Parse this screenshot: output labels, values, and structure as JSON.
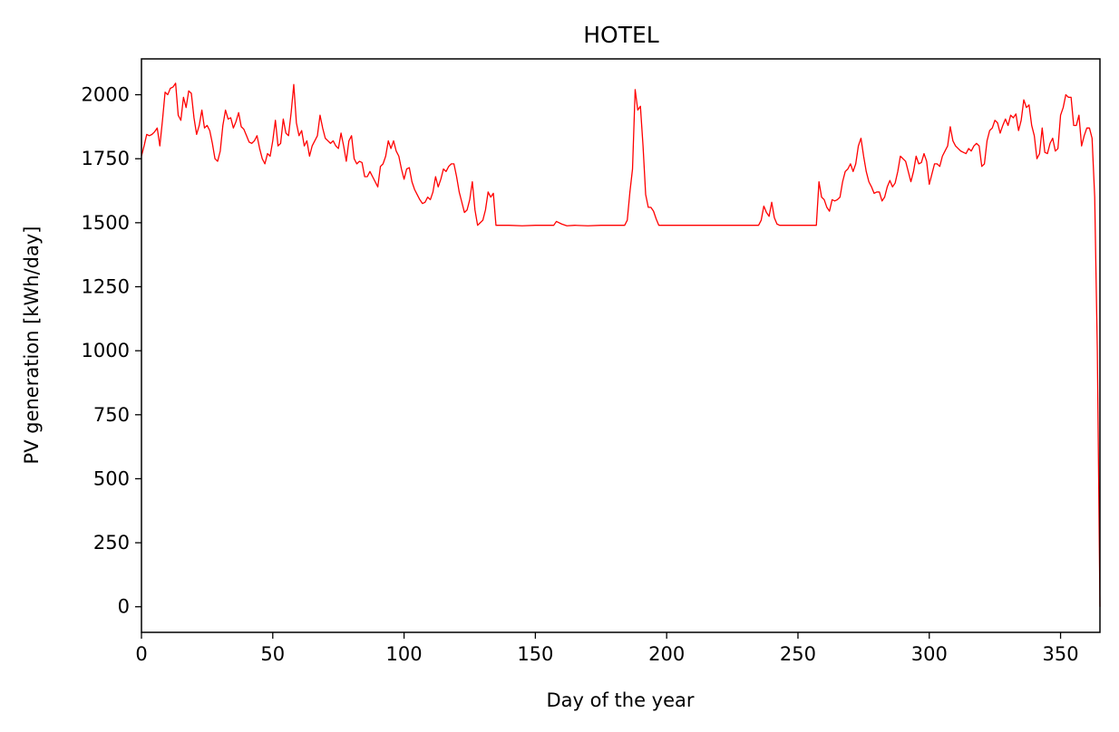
{
  "chart_data": {
    "type": "line",
    "title": "HOTEL",
    "xlabel": "Day of the year",
    "ylabel": "PV generation [kWh/day]",
    "xlim": [
      0,
      365
    ],
    "ylim": [
      -100,
      2140
    ],
    "xticks": [
      0,
      50,
      100,
      150,
      200,
      250,
      300,
      350
    ],
    "yticks": [
      0,
      250,
      500,
      750,
      1000,
      1250,
      1500,
      1750,
      2000
    ],
    "grid": false,
    "series": [
      {
        "color": "#ff0000",
        "points": [
          [
            0,
            1760
          ],
          [
            1,
            1800
          ],
          [
            2,
            1845
          ],
          [
            3,
            1840
          ],
          [
            4,
            1845
          ],
          [
            5,
            1855
          ],
          [
            6,
            1870
          ],
          [
            7,
            1800
          ],
          [
            8,
            1900
          ],
          [
            9,
            2010
          ],
          [
            10,
            2000
          ],
          [
            11,
            2025
          ],
          [
            12,
            2030
          ],
          [
            13,
            2045
          ],
          [
            14,
            1920
          ],
          [
            15,
            1900
          ],
          [
            16,
            1990
          ],
          [
            17,
            1950
          ],
          [
            18,
            2015
          ],
          [
            19,
            2005
          ],
          [
            20,
            1910
          ],
          [
            21,
            1845
          ],
          [
            22,
            1880
          ],
          [
            23,
            1940
          ],
          [
            24,
            1870
          ],
          [
            25,
            1880
          ],
          [
            26,
            1860
          ],
          [
            27,
            1810
          ],
          [
            28,
            1750
          ],
          [
            29,
            1740
          ],
          [
            30,
            1780
          ],
          [
            31,
            1880
          ],
          [
            32,
            1940
          ],
          [
            33,
            1905
          ],
          [
            34,
            1910
          ],
          [
            35,
            1870
          ],
          [
            36,
            1895
          ],
          [
            37,
            1930
          ],
          [
            38,
            1875
          ],
          [
            39,
            1865
          ],
          [
            40,
            1840
          ],
          [
            41,
            1815
          ],
          [
            42,
            1810
          ],
          [
            43,
            1820
          ],
          [
            44,
            1840
          ],
          [
            45,
            1790
          ],
          [
            46,
            1750
          ],
          [
            47,
            1730
          ],
          [
            48,
            1770
          ],
          [
            49,
            1760
          ],
          [
            50,
            1820
          ],
          [
            51,
            1900
          ],
          [
            52,
            1800
          ],
          [
            53,
            1810
          ],
          [
            54,
            1905
          ],
          [
            55,
            1850
          ],
          [
            56,
            1840
          ],
          [
            57,
            1930
          ],
          [
            58,
            2040
          ],
          [
            59,
            1890
          ],
          [
            60,
            1840
          ],
          [
            61,
            1860
          ],
          [
            62,
            1800
          ],
          [
            63,
            1820
          ],
          [
            64,
            1760
          ],
          [
            65,
            1800
          ],
          [
            66,
            1820
          ],
          [
            67,
            1840
          ],
          [
            68,
            1920
          ],
          [
            69,
            1870
          ],
          [
            70,
            1830
          ],
          [
            71,
            1820
          ],
          [
            72,
            1810
          ],
          [
            73,
            1820
          ],
          [
            74,
            1800
          ],
          [
            75,
            1790
          ],
          [
            76,
            1850
          ],
          [
            77,
            1800
          ],
          [
            78,
            1740
          ],
          [
            79,
            1820
          ],
          [
            80,
            1840
          ],
          [
            81,
            1750
          ],
          [
            82,
            1730
          ],
          [
            83,
            1740
          ],
          [
            84,
            1735
          ],
          [
            85,
            1680
          ],
          [
            86,
            1680
          ],
          [
            87,
            1700
          ],
          [
            88,
            1680
          ],
          [
            89,
            1660
          ],
          [
            90,
            1640
          ],
          [
            91,
            1720
          ],
          [
            92,
            1730
          ],
          [
            93,
            1760
          ],
          [
            94,
            1820
          ],
          [
            95,
            1790
          ],
          [
            96,
            1820
          ],
          [
            97,
            1780
          ],
          [
            98,
            1760
          ],
          [
            99,
            1710
          ],
          [
            100,
            1670
          ],
          [
            101,
            1710
          ],
          [
            102,
            1715
          ],
          [
            103,
            1660
          ],
          [
            104,
            1630
          ],
          [
            105,
            1610
          ],
          [
            106,
            1590
          ],
          [
            107,
            1575
          ],
          [
            108,
            1580
          ],
          [
            109,
            1600
          ],
          [
            110,
            1590
          ],
          [
            111,
            1620
          ],
          [
            112,
            1680
          ],
          [
            113,
            1640
          ],
          [
            114,
            1670
          ],
          [
            115,
            1710
          ],
          [
            116,
            1700
          ],
          [
            117,
            1720
          ],
          [
            118,
            1730
          ],
          [
            119,
            1730
          ],
          [
            120,
            1680
          ],
          [
            121,
            1620
          ],
          [
            122,
            1580
          ],
          [
            123,
            1540
          ],
          [
            124,
            1550
          ],
          [
            125,
            1590
          ],
          [
            126,
            1660
          ],
          [
            127,
            1550
          ],
          [
            128,
            1490
          ],
          [
            129,
            1500
          ],
          [
            130,
            1510
          ],
          [
            131,
            1550
          ],
          [
            132,
            1620
          ],
          [
            133,
            1600
          ],
          [
            134,
            1615
          ],
          [
            135,
            1490
          ],
          [
            136,
            1490
          ],
          [
            140,
            1490
          ],
          [
            145,
            1488
          ],
          [
            150,
            1490
          ],
          [
            155,
            1490
          ],
          [
            157,
            1490
          ],
          [
            158,
            1505
          ],
          [
            160,
            1495
          ],
          [
            162,
            1488
          ],
          [
            165,
            1490
          ],
          [
            170,
            1488
          ],
          [
            175,
            1490
          ],
          [
            180,
            1490
          ],
          [
            184,
            1490
          ],
          [
            185,
            1510
          ],
          [
            186,
            1620
          ],
          [
            187,
            1710
          ],
          [
            188,
            2020
          ],
          [
            189,
            1940
          ],
          [
            190,
            1955
          ],
          [
            191,
            1800
          ],
          [
            192,
            1610
          ],
          [
            193,
            1560
          ],
          [
            194,
            1560
          ],
          [
            195,
            1545
          ],
          [
            196,
            1515
          ],
          [
            197,
            1490
          ],
          [
            200,
            1490
          ],
          [
            210,
            1490
          ],
          [
            220,
            1490
          ],
          [
            230,
            1490
          ],
          [
            235,
            1490
          ],
          [
            236,
            1510
          ],
          [
            237,
            1565
          ],
          [
            238,
            1540
          ],
          [
            239,
            1525
          ],
          [
            240,
            1580
          ],
          [
            241,
            1520
          ],
          [
            242,
            1495
          ],
          [
            243,
            1490
          ],
          [
            250,
            1490
          ],
          [
            255,
            1490
          ],
          [
            257,
            1490
          ],
          [
            258,
            1660
          ],
          [
            259,
            1600
          ],
          [
            260,
            1590
          ],
          [
            261,
            1560
          ],
          [
            262,
            1545
          ],
          [
            263,
            1590
          ],
          [
            264,
            1585
          ],
          [
            265,
            1590
          ],
          [
            266,
            1600
          ],
          [
            267,
            1660
          ],
          [
            268,
            1700
          ],
          [
            269,
            1710
          ],
          [
            270,
            1730
          ],
          [
            271,
            1700
          ],
          [
            272,
            1730
          ],
          [
            273,
            1800
          ],
          [
            274,
            1830
          ],
          [
            275,
            1760
          ],
          [
            276,
            1700
          ],
          [
            277,
            1660
          ],
          [
            278,
            1640
          ],
          [
            279,
            1615
          ],
          [
            280,
            1620
          ],
          [
            281,
            1620
          ],
          [
            282,
            1585
          ],
          [
            283,
            1600
          ],
          [
            284,
            1640
          ],
          [
            285,
            1665
          ],
          [
            286,
            1640
          ],
          [
            287,
            1655
          ],
          [
            288,
            1700
          ],
          [
            289,
            1760
          ],
          [
            290,
            1750
          ],
          [
            291,
            1740
          ],
          [
            292,
            1700
          ],
          [
            293,
            1660
          ],
          [
            294,
            1700
          ],
          [
            295,
            1760
          ],
          [
            296,
            1730
          ],
          [
            297,
            1735
          ],
          [
            298,
            1770
          ],
          [
            299,
            1740
          ],
          [
            300,
            1650
          ],
          [
            301,
            1690
          ],
          [
            302,
            1730
          ],
          [
            303,
            1730
          ],
          [
            304,
            1720
          ],
          [
            305,
            1760
          ],
          [
            306,
            1780
          ],
          [
            307,
            1800
          ],
          [
            308,
            1875
          ],
          [
            309,
            1820
          ],
          [
            310,
            1800
          ],
          [
            311,
            1790
          ],
          [
            312,
            1780
          ],
          [
            313,
            1775
          ],
          [
            314,
            1770
          ],
          [
            315,
            1790
          ],
          [
            316,
            1780
          ],
          [
            317,
            1800
          ],
          [
            318,
            1810
          ],
          [
            319,
            1800
          ],
          [
            320,
            1720
          ],
          [
            321,
            1730
          ],
          [
            322,
            1820
          ],
          [
            323,
            1860
          ],
          [
            324,
            1870
          ],
          [
            325,
            1900
          ],
          [
            326,
            1890
          ],
          [
            327,
            1850
          ],
          [
            328,
            1880
          ],
          [
            329,
            1905
          ],
          [
            330,
            1880
          ],
          [
            331,
            1920
          ],
          [
            332,
            1910
          ],
          [
            333,
            1925
          ],
          [
            334,
            1860
          ],
          [
            335,
            1900
          ],
          [
            336,
            1980
          ],
          [
            337,
            1950
          ],
          [
            338,
            1960
          ],
          [
            339,
            1880
          ],
          [
            340,
            1840
          ],
          [
            341,
            1750
          ],
          [
            342,
            1770
          ],
          [
            343,
            1870
          ],
          [
            344,
            1775
          ],
          [
            345,
            1770
          ],
          [
            346,
            1810
          ],
          [
            347,
            1830
          ],
          [
            348,
            1780
          ],
          [
            349,
            1790
          ],
          [
            350,
            1920
          ],
          [
            351,
            1950
          ],
          [
            352,
            2000
          ],
          [
            353,
            1990
          ],
          [
            354,
            1990
          ],
          [
            355,
            1880
          ],
          [
            356,
            1880
          ],
          [
            357,
            1920
          ],
          [
            358,
            1800
          ],
          [
            359,
            1840
          ],
          [
            360,
            1870
          ],
          [
            361,
            1870
          ],
          [
            362,
            1830
          ],
          [
            363,
            1600
          ],
          [
            364,
            1000
          ],
          [
            365,
            0
          ]
        ]
      }
    ]
  }
}
